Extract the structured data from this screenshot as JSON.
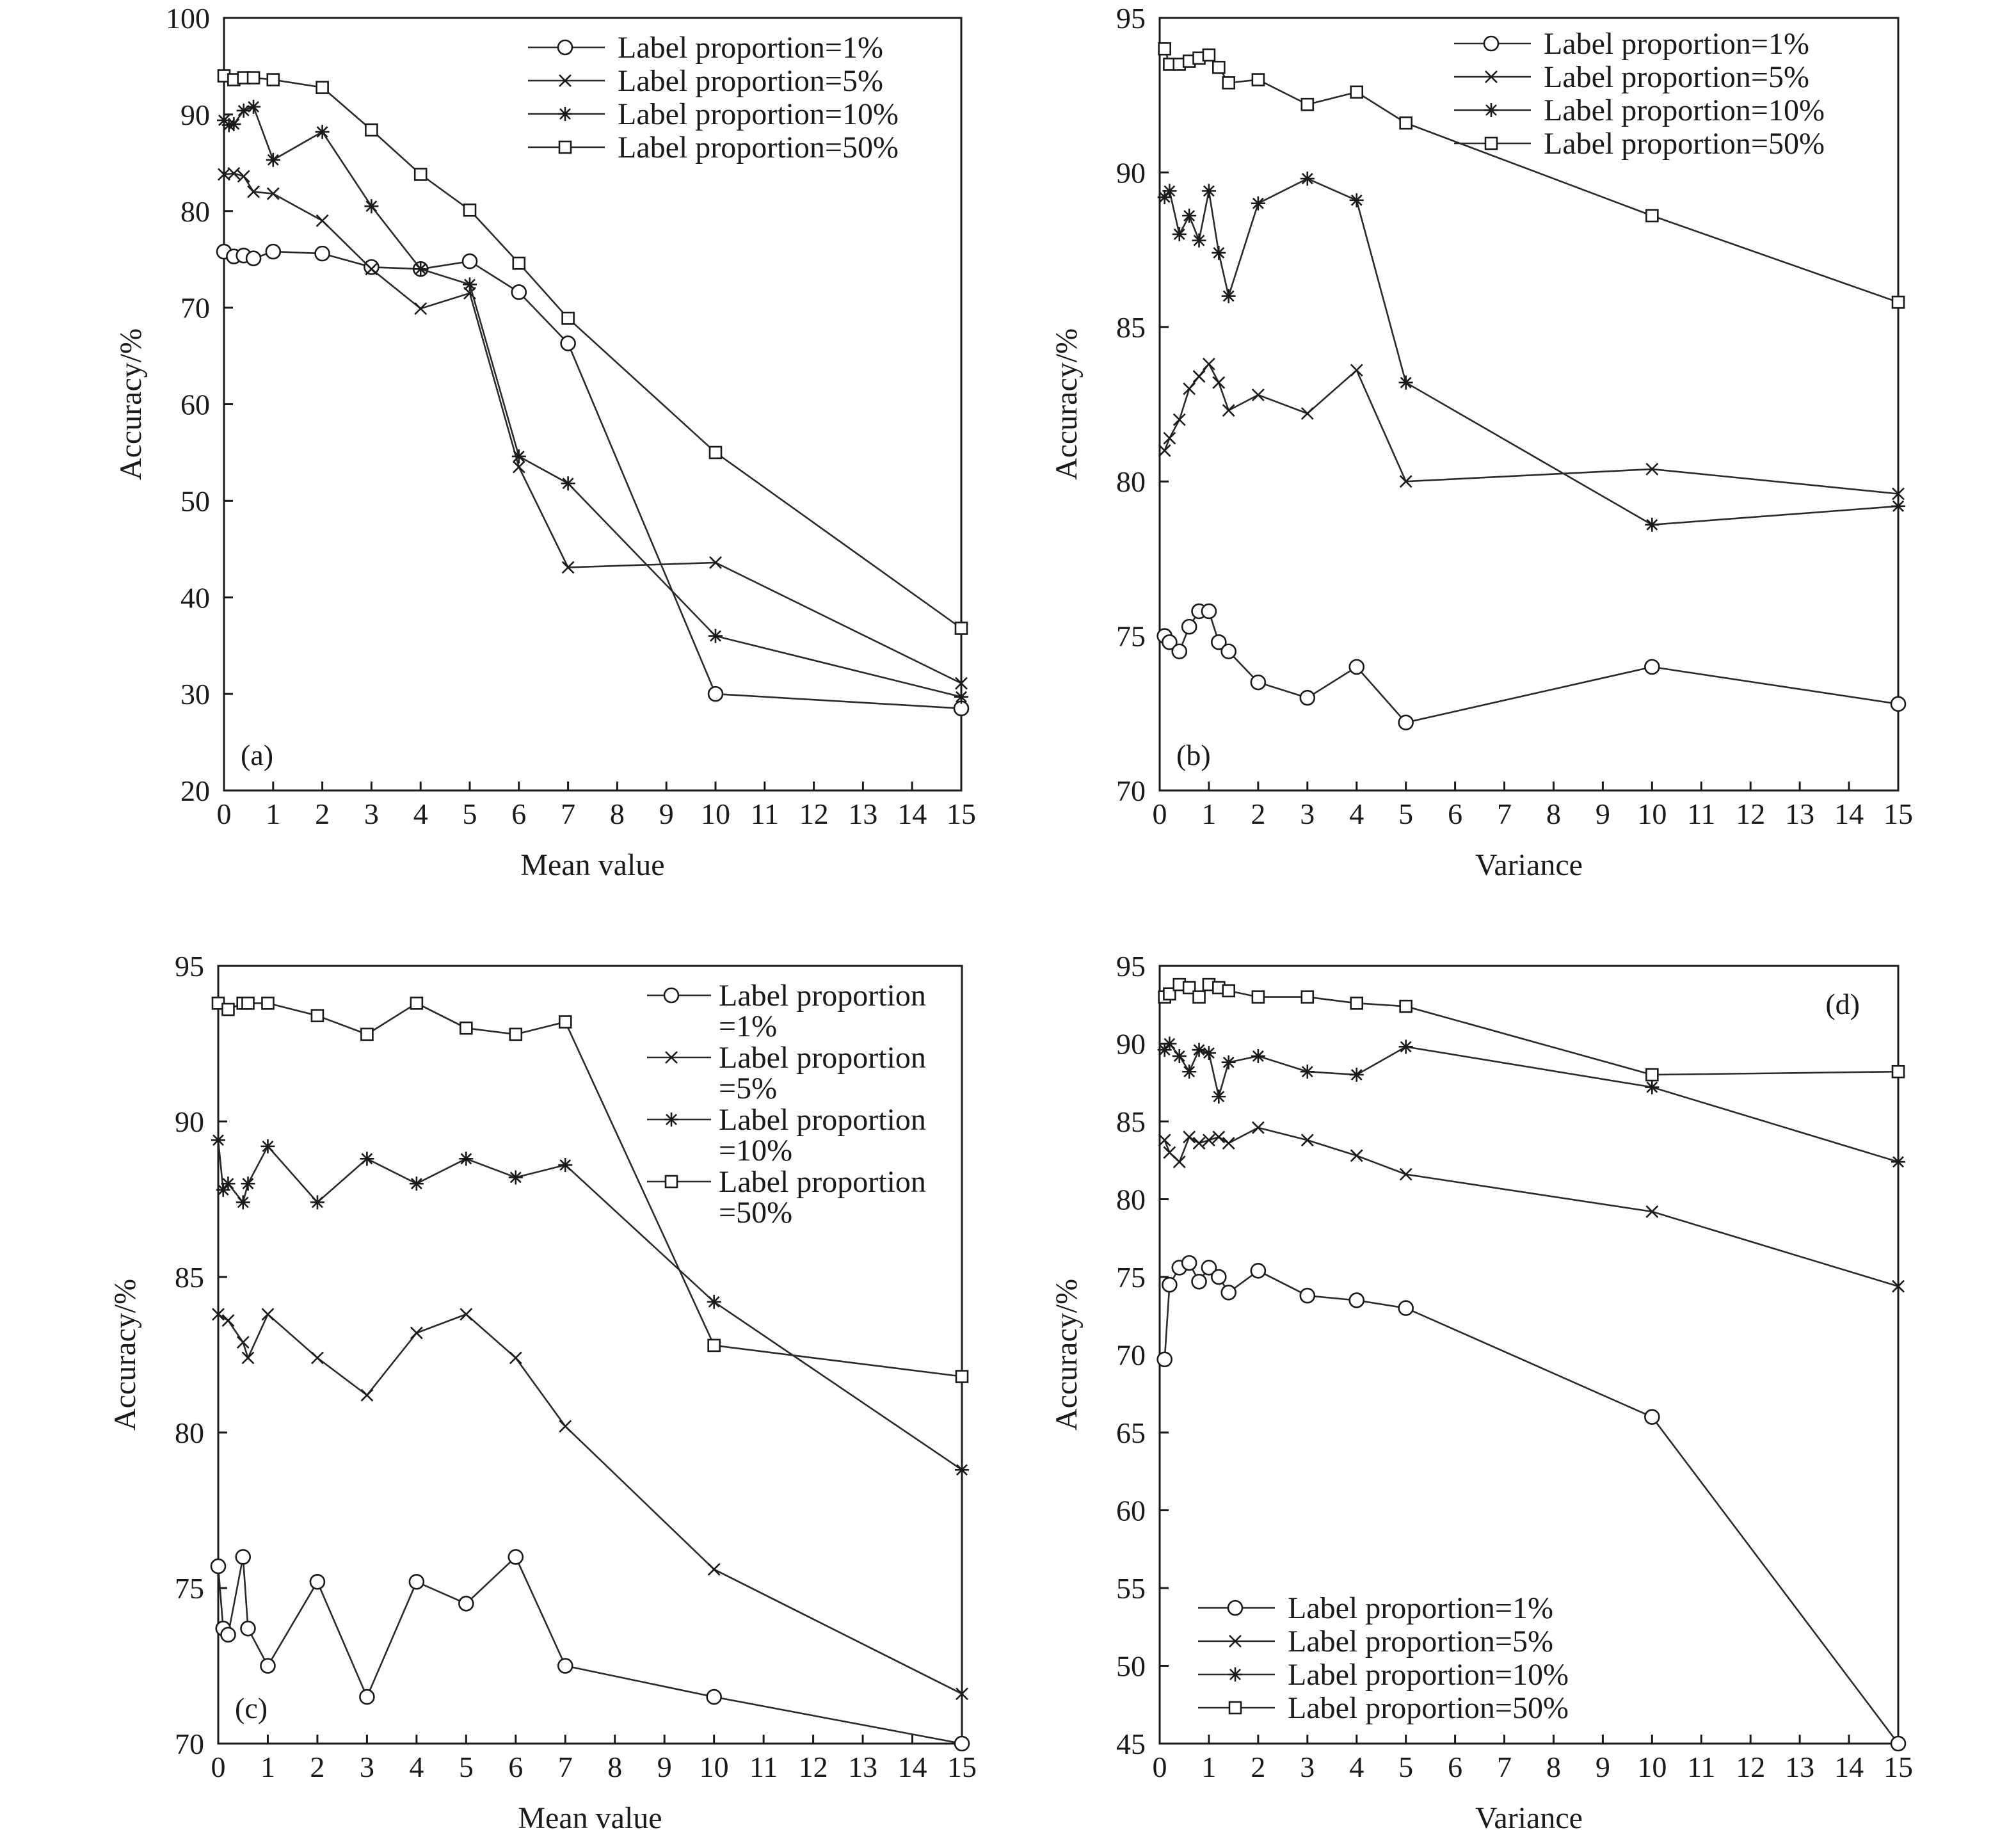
{
  "chart_data": [
    {
      "type": "line",
      "panel_label": "(a)",
      "xlabel": "Mean value",
      "ylabel": "Accuracy/%",
      "xlim": [
        0,
        15
      ],
      "ylim": [
        20,
        100
      ],
      "xticks": [
        0,
        1,
        2,
        3,
        4,
        5,
        6,
        7,
        8,
        9,
        10,
        11,
        12,
        13,
        14,
        15
      ],
      "yticks": [
        20,
        30,
        40,
        50,
        60,
        70,
        80,
        90,
        100
      ],
      "grid": false,
      "legend_position": "top-right",
      "legend_layout": "single",
      "series": [
        {
          "name": "Label proportion=1%",
          "marker": "circle",
          "x": [
            0,
            0.2,
            0.4,
            0.6,
            1,
            2,
            3,
            4,
            5,
            6,
            7,
            10,
            15
          ],
          "y": [
            75.8,
            75.3,
            75.4,
            75.1,
            75.8,
            75.6,
            74.2,
            74.0,
            74.8,
            71.6,
            66.3,
            30.0,
            28.5
          ]
        },
        {
          "name": "Label proportion=5%",
          "marker": "x",
          "x": [
            0,
            0.2,
            0.4,
            0.6,
            1,
            2,
            3,
            4,
            5,
            6,
            7,
            10,
            15
          ],
          "y": [
            83.8,
            83.9,
            83.6,
            82.0,
            81.8,
            79.0,
            74.0,
            69.9,
            71.5,
            53.5,
            43.1,
            43.6,
            31.1
          ]
        },
        {
          "name": "Label proportion=10%",
          "marker": "asterisk",
          "x": [
            0,
            0.1,
            0.2,
            0.4,
            0.6,
            1,
            2,
            3,
            4,
            5,
            6,
            7,
            10,
            15
          ],
          "y": [
            89.4,
            88.9,
            89.0,
            90.4,
            90.8,
            85.3,
            88.2,
            80.5,
            74.0,
            72.4,
            54.6,
            51.8,
            36.0,
            29.7
          ]
        },
        {
          "name": "Label proportion=50%",
          "marker": "square",
          "x": [
            0,
            0.2,
            0.4,
            0.6,
            1,
            2,
            3,
            4,
            5,
            6,
            7,
            10,
            15
          ],
          "y": [
            94.0,
            93.6,
            93.8,
            93.8,
            93.6,
            92.8,
            88.4,
            83.8,
            80.1,
            74.6,
            68.9,
            55.0,
            36.8
          ]
        }
      ]
    },
    {
      "type": "line",
      "panel_label": "(b)",
      "xlabel": "Variance",
      "ylabel": "Accuracy/%",
      "xlim": [
        0,
        15
      ],
      "ylim": [
        70,
        95
      ],
      "xticks": [
        0,
        1,
        2,
        3,
        4,
        5,
        6,
        7,
        8,
        9,
        10,
        11,
        12,
        13,
        14,
        15
      ],
      "yticks": [
        70,
        75,
        80,
        85,
        90,
        95
      ],
      "grid": false,
      "legend_position": "top-right",
      "legend_layout": "single",
      "series": [
        {
          "name": "Label proportion=1%",
          "marker": "circle",
          "x": [
            0.1,
            0.2,
            0.4,
            0.6,
            0.8,
            1,
            1.2,
            1.4,
            2,
            3,
            4,
            5,
            10,
            15
          ],
          "y": [
            75.0,
            74.8,
            74.5,
            75.3,
            75.8,
            75.8,
            74.8,
            74.5,
            73.5,
            73.0,
            74.0,
            72.2,
            74.0,
            72.8
          ]
        },
        {
          "name": "Label proportion=5%",
          "marker": "x",
          "x": [
            0.1,
            0.2,
            0.4,
            0.6,
            0.8,
            1,
            1.2,
            1.4,
            2,
            3,
            4,
            5,
            10,
            15
          ],
          "y": [
            81.0,
            81.4,
            82.0,
            83.0,
            83.4,
            83.8,
            83.2,
            82.3,
            82.8,
            82.2,
            83.6,
            80.0,
            80.4,
            79.6
          ]
        },
        {
          "name": "Label proportion=10%",
          "marker": "asterisk",
          "x": [
            0.1,
            0.2,
            0.4,
            0.6,
            0.8,
            1,
            1.2,
            1.4,
            2,
            3,
            4,
            5,
            10,
            15
          ],
          "y": [
            89.2,
            89.4,
            88.0,
            88.6,
            87.8,
            89.4,
            87.4,
            86.0,
            89.0,
            89.8,
            89.1,
            83.2,
            78.6,
            79.2
          ]
        },
        {
          "name": "Label proportion=50%",
          "marker": "square",
          "x": [
            0.1,
            0.2,
            0.4,
            0.6,
            0.8,
            1,
            1.2,
            1.4,
            2,
            3,
            4,
            5,
            10,
            15
          ],
          "y": [
            94.0,
            93.5,
            93.5,
            93.6,
            93.7,
            93.8,
            93.4,
            92.9,
            93.0,
            92.2,
            92.6,
            91.6,
            88.6,
            85.8
          ]
        }
      ]
    },
    {
      "type": "line",
      "panel_label": "(c)",
      "xlabel": "Mean value",
      "ylabel": "Accuracy/%",
      "xlim": [
        0,
        15
      ],
      "ylim": [
        70,
        95
      ],
      "xticks": [
        0,
        1,
        2,
        3,
        4,
        5,
        6,
        7,
        8,
        9,
        10,
        11,
        12,
        13,
        14,
        15
      ],
      "yticks": [
        70,
        75,
        80,
        85,
        90,
        95
      ],
      "grid": false,
      "legend_position": "top-right",
      "legend_layout": "wrapped",
      "legend_lines": [
        [
          "Label proportion",
          "=1%"
        ],
        [
          "Label proportion",
          "=5%"
        ],
        [
          "Label proportion",
          "=10%"
        ],
        [
          "Label proportion",
          "=50%"
        ]
      ],
      "series": [
        {
          "name": "Label proportion=1%",
          "marker": "circle",
          "x": [
            0,
            0.1,
            0.2,
            0.5,
            0.6,
            1,
            2,
            3,
            4,
            5,
            6,
            7,
            10,
            15
          ],
          "y": [
            75.7,
            73.7,
            73.5,
            76.0,
            73.7,
            72.5,
            75.2,
            71.5,
            75.2,
            74.5,
            76.0,
            72.5,
            71.5,
            70.0
          ]
        },
        {
          "name": "Label proportion=5%",
          "marker": "x",
          "x": [
            0,
            0.2,
            0.5,
            0.6,
            1,
            2,
            3,
            4,
            5,
            6,
            7,
            10,
            15
          ],
          "y": [
            83.8,
            83.6,
            82.9,
            82.4,
            83.8,
            82.4,
            81.2,
            83.2,
            83.8,
            82.4,
            80.2,
            75.6,
            71.6
          ]
        },
        {
          "name": "Label proportion=10%",
          "marker": "asterisk",
          "x": [
            0,
            0.1,
            0.2,
            0.5,
            0.6,
            1,
            2,
            3,
            4,
            5,
            6,
            7,
            10,
            15
          ],
          "y": [
            89.4,
            87.8,
            88.0,
            87.4,
            88.0,
            89.2,
            87.4,
            88.8,
            88.0,
            88.8,
            88.2,
            88.6,
            84.2,
            78.8
          ]
        },
        {
          "name": "Label proportion=50%",
          "marker": "square",
          "x": [
            0,
            0.2,
            0.5,
            0.6,
            1,
            2,
            3,
            4,
            5,
            6,
            7,
            10,
            15
          ],
          "y": [
            93.8,
            93.6,
            93.8,
            93.8,
            93.8,
            93.4,
            92.8,
            93.8,
            93.0,
            92.8,
            93.2,
            82.8,
            81.8
          ]
        }
      ]
    },
    {
      "type": "line",
      "panel_label": "(d)",
      "xlabel": "Variance",
      "ylabel": "Accuracy/%",
      "xlim": [
        0,
        15
      ],
      "ylim": [
        45,
        95
      ],
      "xticks": [
        0,
        1,
        2,
        3,
        4,
        5,
        6,
        7,
        8,
        9,
        10,
        11,
        12,
        13,
        14,
        15
      ],
      "yticks": [
        45,
        50,
        55,
        60,
        65,
        70,
        75,
        80,
        85,
        90,
        95
      ],
      "grid": false,
      "legend_position": "bottom-left",
      "legend_layout": "single",
      "series": [
        {
          "name": "Label proportion=1%",
          "marker": "circle",
          "x": [
            0.1,
            0.2,
            0.4,
            0.6,
            0.8,
            1,
            1.2,
            1.4,
            2,
            3,
            4,
            5,
            10,
            15
          ],
          "y": [
            69.7,
            74.5,
            75.6,
            75.9,
            74.7,
            75.6,
            75.0,
            74.0,
            75.4,
            73.8,
            73.5,
            73.0,
            66.0,
            45.0
          ]
        },
        {
          "name": "Label proportion=5%",
          "marker": "x",
          "x": [
            0.1,
            0.2,
            0.4,
            0.6,
            0.8,
            1,
            1.2,
            1.4,
            2,
            3,
            4,
            5,
            10,
            15
          ],
          "y": [
            83.8,
            83.0,
            82.4,
            84.0,
            83.6,
            83.8,
            84.0,
            83.6,
            84.6,
            83.8,
            82.8,
            81.6,
            79.2,
            74.4
          ]
        },
        {
          "name": "Label proportion=10%",
          "marker": "asterisk",
          "x": [
            0.1,
            0.2,
            0.4,
            0.6,
            0.8,
            1,
            1.2,
            1.4,
            2,
            3,
            4,
            5,
            10,
            15
          ],
          "y": [
            89.6,
            90.0,
            89.2,
            88.2,
            89.6,
            89.4,
            86.6,
            88.8,
            89.2,
            88.2,
            88.0,
            89.8,
            87.2,
            82.4
          ]
        },
        {
          "name": "Label proportion=50%",
          "marker": "square",
          "x": [
            0.1,
            0.2,
            0.4,
            0.6,
            0.8,
            1,
            1.2,
            1.4,
            2,
            3,
            4,
            5,
            10,
            15
          ],
          "y": [
            93.0,
            93.2,
            93.8,
            93.6,
            93.0,
            93.8,
            93.6,
            93.4,
            93.0,
            93.0,
            92.6,
            92.4,
            88.0,
            88.2
          ]
        }
      ]
    }
  ]
}
